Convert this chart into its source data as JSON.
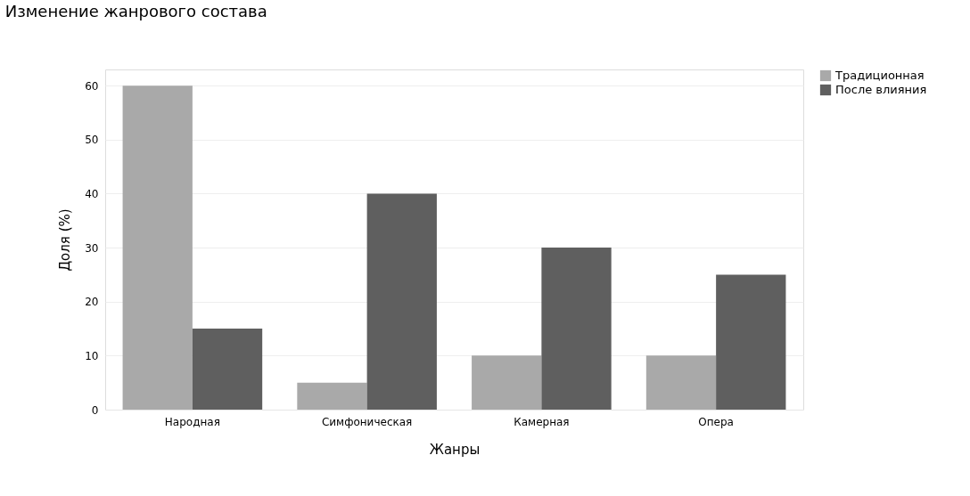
{
  "chart_data": {
    "type": "bar",
    "title": "Изменение жанрового состава",
    "xlabel": "Жанры",
    "ylabel": "Доля (%)",
    "categories": [
      "Народная",
      "Симфоническая",
      "Камерная",
      "Опера"
    ],
    "series": [
      {
        "name": "Традиционная",
        "color": "#a9a9a9",
        "values": [
          60,
          5,
          10,
          10
        ]
      },
      {
        "name": "После влияния",
        "color": "#5f5f5f",
        "values": [
          15,
          40,
          30,
          25
        ]
      }
    ],
    "ylim": [
      0,
      63
    ],
    "yticks": [
      0,
      10,
      20,
      30,
      40,
      50,
      60
    ],
    "grid": "y",
    "legend": "top right"
  }
}
